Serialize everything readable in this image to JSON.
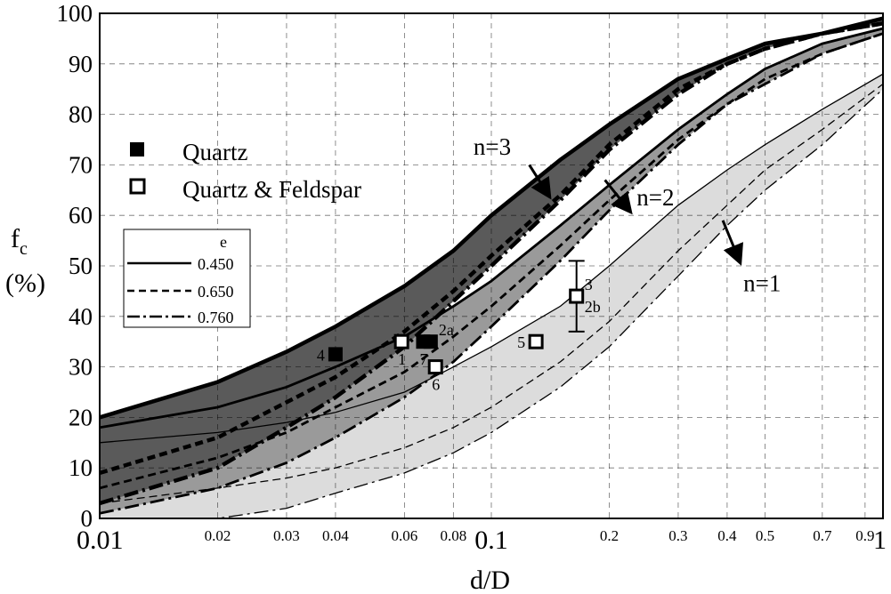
{
  "chart_data": {
    "type": "line",
    "xscale": "log",
    "xlim": [
      0.01,
      1
    ],
    "ylim": [
      0,
      100
    ],
    "grid": true,
    "xlabel": "d/D",
    "ylabel_main": "f",
    "ylabel_sub": "c",
    "ylabel_unit": "(%)",
    "yticks": [
      "0",
      "10",
      "20",
      "30",
      "40",
      "50",
      "60",
      "70",
      "80",
      "90",
      "100"
    ],
    "xticks_major": [
      {
        "value": 0.01,
        "label": "0.01"
      },
      {
        "value": 0.1,
        "label": "0.1"
      },
      {
        "value": 1,
        "label": "1"
      }
    ],
    "xticks_minor": [
      {
        "value": 0.02,
        "label": "0.02"
      },
      {
        "value": 0.03,
        "label": "0.03"
      },
      {
        "value": 0.04,
        "label": "0.04"
      },
      {
        "value": 0.06,
        "label": "0.06"
      },
      {
        "value": 0.08,
        "label": "0.08"
      },
      {
        "value": 0.2,
        "label": "0.2"
      },
      {
        "value": 0.3,
        "label": "0.3"
      },
      {
        "value": 0.4,
        "label": "0.4"
      },
      {
        "value": 0.5,
        "label": "0.5"
      },
      {
        "value": 0.7,
        "label": "0.7"
      },
      {
        "value": 0.9,
        "label": "0.9"
      }
    ],
    "legend_markers": [
      {
        "label": "Quartz",
        "marker": "filled-square"
      },
      {
        "label": "Quartz & Feldspar",
        "marker": "open-square"
      }
    ],
    "legend_e": {
      "title": "e",
      "entries": [
        {
          "label": "0.450",
          "style": "solid"
        },
        {
          "label": "0.650",
          "style": "dashed"
        },
        {
          "label": "0.760",
          "style": "dashdot"
        }
      ]
    },
    "bands": [
      {
        "n_label": "n=3",
        "fill": "#5a5a5a",
        "stroke_weight": "heavy",
        "series": [
          {
            "e": "0.450",
            "style": "solid",
            "points": [
              [
                0.01,
                20
              ],
              [
                0.02,
                27
              ],
              [
                0.03,
                33
              ],
              [
                0.04,
                38
              ],
              [
                0.06,
                46
              ],
              [
                0.08,
                53
              ],
              [
                0.1,
                60
              ],
              [
                0.15,
                71
              ],
              [
                0.2,
                78
              ],
              [
                0.3,
                87
              ],
              [
                0.4,
                91
              ],
              [
                0.5,
                94
              ],
              [
                0.7,
                96
              ],
              [
                1,
                99
              ]
            ]
          },
          {
            "e": "0.650",
            "style": "dashed",
            "points": [
              [
                0.01,
                9
              ],
              [
                0.02,
                16
              ],
              [
                0.03,
                23
              ],
              [
                0.04,
                28
              ],
              [
                0.06,
                37
              ],
              [
                0.08,
                45
              ],
              [
                0.1,
                52
              ],
              [
                0.15,
                64
              ],
              [
                0.2,
                74
              ],
              [
                0.3,
                85
              ],
              [
                0.4,
                90
              ],
              [
                0.5,
                93
              ],
              [
                0.7,
                96
              ],
              [
                1,
                98
              ]
            ]
          },
          {
            "e": "0.760",
            "style": "dashdot",
            "points": [
              [
                0.01,
                3
              ],
              [
                0.02,
                10
              ],
              [
                0.03,
                18
              ],
              [
                0.04,
                24
              ],
              [
                0.06,
                34
              ],
              [
                0.08,
                43
              ],
              [
                0.1,
                50
              ],
              [
                0.15,
                63
              ],
              [
                0.2,
                73
              ],
              [
                0.3,
                84
              ],
              [
                0.4,
                90
              ],
              [
                0.5,
                93
              ],
              [
                0.7,
                96
              ],
              [
                1,
                98
              ]
            ]
          }
        ]
      },
      {
        "n_label": "n=2",
        "fill": "#9a9a9a",
        "stroke_weight": "medium",
        "series": [
          {
            "e": "0.450",
            "style": "solid",
            "points": [
              [
                0.01,
                18
              ],
              [
                0.02,
                22
              ],
              [
                0.03,
                26
              ],
              [
                0.04,
                30
              ],
              [
                0.06,
                36
              ],
              [
                0.08,
                42
              ],
              [
                0.1,
                47
              ],
              [
                0.15,
                58
              ],
              [
                0.2,
                66
              ],
              [
                0.3,
                77
              ],
              [
                0.4,
                84
              ],
              [
                0.5,
                89
              ],
              [
                0.7,
                94
              ],
              [
                1,
                97
              ]
            ]
          },
          {
            "e": "0.650",
            "style": "dashed",
            "points": [
              [
                0.01,
                6
              ],
              [
                0.02,
                12
              ],
              [
                0.03,
                17
              ],
              [
                0.04,
                22
              ],
              [
                0.06,
                29
              ],
              [
                0.08,
                36
              ],
              [
                0.1,
                42
              ],
              [
                0.15,
                54
              ],
              [
                0.2,
                63
              ],
              [
                0.3,
                75
              ],
              [
                0.4,
                82
              ],
              [
                0.5,
                87
              ],
              [
                0.7,
                92
              ],
              [
                1,
                96
              ]
            ]
          },
          {
            "e": "0.760",
            "style": "dashdot",
            "points": [
              [
                0.01,
                1
              ],
              [
                0.02,
                6
              ],
              [
                0.03,
                11
              ],
              [
                0.04,
                16
              ],
              [
                0.06,
                24
              ],
              [
                0.08,
                31
              ],
              [
                0.1,
                38
              ],
              [
                0.15,
                51
              ],
              [
                0.2,
                61
              ],
              [
                0.3,
                74
              ],
              [
                0.4,
                82
              ],
              [
                0.5,
                86
              ],
              [
                0.7,
                92
              ],
              [
                1,
                96
              ]
            ]
          }
        ]
      },
      {
        "n_label": "n=1",
        "fill": "#dcdcdc",
        "stroke_weight": "light",
        "series": [
          {
            "e": "0.450",
            "style": "solid",
            "points": [
              [
                0.01,
                15
              ],
              [
                0.02,
                17
              ],
              [
                0.03,
                19
              ],
              [
                0.04,
                21
              ],
              [
                0.06,
                25
              ],
              [
                0.08,
                30
              ],
              [
                0.1,
                34
              ],
              [
                0.15,
                42
              ],
              [
                0.2,
                50
              ],
              [
                0.3,
                62
              ],
              [
                0.4,
                69
              ],
              [
                0.5,
                74
              ],
              [
                0.7,
                81
              ],
              [
                1,
                88
              ]
            ]
          },
          {
            "e": "0.650",
            "style": "dashed",
            "points": [
              [
                0.01,
                3
              ],
              [
                0.02,
                6
              ],
              [
                0.03,
                8
              ],
              [
                0.04,
                10
              ],
              [
                0.06,
                14
              ],
              [
                0.08,
                18
              ],
              [
                0.1,
                22
              ],
              [
                0.15,
                31
              ],
              [
                0.2,
                39
              ],
              [
                0.3,
                53
              ],
              [
                0.4,
                62
              ],
              [
                0.5,
                69
              ],
              [
                0.7,
                77
              ],
              [
                1,
                86
              ]
            ]
          },
          {
            "e": "0.760",
            "style": "dashdot",
            "points": [
              [
                0.01,
                0
              ],
              [
                0.02,
                0
              ],
              [
                0.03,
                2
              ],
              [
                0.04,
                5
              ],
              [
                0.06,
                9
              ],
              [
                0.08,
                13
              ],
              [
                0.1,
                17
              ],
              [
                0.15,
                26
              ],
              [
                0.2,
                34
              ],
              [
                0.3,
                48
              ],
              [
                0.4,
                58
              ],
              [
                0.5,
                65
              ],
              [
                0.7,
                74
              ],
              [
                1,
                85
              ]
            ]
          }
        ]
      }
    ],
    "points": [
      {
        "label": "4",
        "x": 0.04,
        "y": 32.5,
        "marker": "filled",
        "label_pos": "left"
      },
      {
        "label": "1",
        "x": 0.059,
        "y": 35,
        "marker": "open",
        "label_pos": "below"
      },
      {
        "label": "7",
        "x": 0.067,
        "y": 35,
        "marker": "filled",
        "label_pos": "below"
      },
      {
        "label": "2a",
        "x": 0.07,
        "y": 35,
        "marker": "filled",
        "label_pos": "above-right"
      },
      {
        "label": "6",
        "x": 0.072,
        "y": 30,
        "marker": "open",
        "label_pos": "below"
      },
      {
        "label": "5",
        "x": 0.13,
        "y": 35,
        "marker": "open",
        "label_pos": "left"
      },
      {
        "label": "3",
        "x": 0.165,
        "y": 44,
        "marker": "open",
        "label_pos": "above-right"
      },
      {
        "label": "2b",
        "x": 0.165,
        "y": 44,
        "marker": "open",
        "label_pos": "below-right"
      }
    ],
    "error_bar": {
      "x": 0.165,
      "y_low": 37,
      "y_high": 51
    },
    "n_annotations": [
      {
        "label": "n=3",
        "text_x": 0.09,
        "text_y": 72,
        "arrow_from": [
          0.125,
          70
        ],
        "arrow_to": [
          0.14,
          64
        ]
      },
      {
        "label": "n=2",
        "text_x": 0.235,
        "text_y": 62,
        "arrow_from": [
          0.195,
          67
        ],
        "arrow_to": [
          0.225,
          61
        ]
      },
      {
        "label": "n=1",
        "text_x": 0.44,
        "text_y": 45,
        "arrow_from": [
          0.39,
          59
        ],
        "arrow_to": [
          0.43,
          51
        ]
      }
    ]
  }
}
